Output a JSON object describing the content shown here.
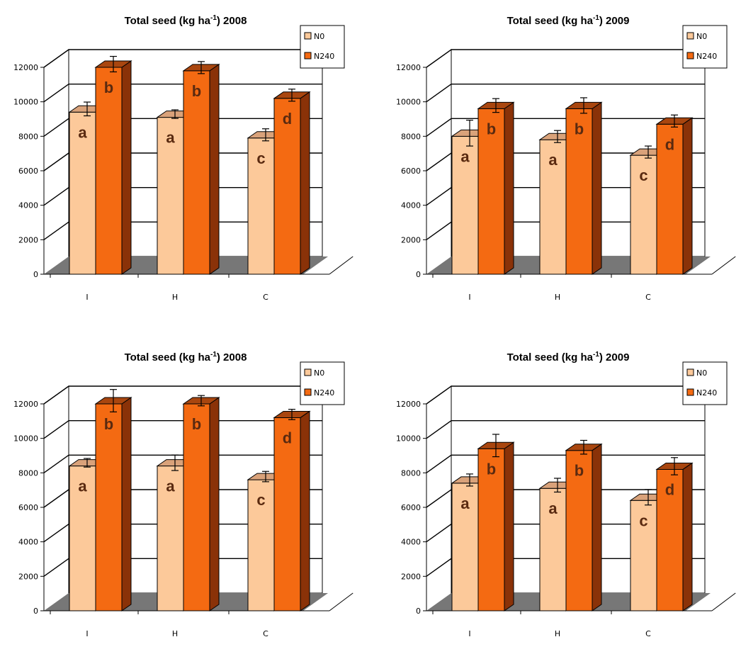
{
  "legend": [
    "N0",
    "N240"
  ],
  "colors": {
    "n0_front": "#fcc99a",
    "n0_top": "#d9a27a",
    "n0_side": "#e8b080",
    "n240_front": "#f46a12",
    "n240_top": "#a9460f",
    "n240_side": "#8a3208",
    "floor": "#777777"
  },
  "chart_data": [
    {
      "type": "bar",
      "title_main": "Total seed (kg ha",
      "title_sup": "-1",
      "title_year": ") 2008",
      "categories": [
        "I",
        "H",
        "C"
      ],
      "ylim": [
        0,
        12000
      ],
      "yticks": [
        "0",
        "2000",
        "4000",
        "6000",
        "8000",
        "10000",
        "12000"
      ],
      "series": [
        {
          "name": "N0",
          "values": [
            9400,
            9100,
            7900
          ],
          "errors": [
            400,
            250,
            350
          ],
          "labels": [
            "a",
            "a",
            "c"
          ]
        },
        {
          "name": "N240",
          "values": [
            12000,
            11800,
            10200
          ],
          "errors": [
            450,
            350,
            350
          ],
          "labels": [
            "b",
            "b",
            "d"
          ]
        }
      ]
    },
    {
      "type": "bar",
      "title_main": "Total seed (kg ha",
      "title_sup": "-1",
      "title_year": ") 2009",
      "categories": [
        "I",
        "H",
        "C"
      ],
      "ylim": [
        0,
        12000
      ],
      "yticks": [
        "0",
        "2000",
        "4000",
        "6000",
        "8000",
        "10000",
        "12000"
      ],
      "series": [
        {
          "name": "N0",
          "values": [
            8000,
            7800,
            6900
          ],
          "errors": [
            750,
            350,
            350
          ],
          "labels": [
            "a",
            "a",
            "c"
          ]
        },
        {
          "name": "N240",
          "values": [
            9600,
            9600,
            8700
          ],
          "errors": [
            400,
            450,
            350
          ],
          "labels": [
            "b",
            "b",
            "d"
          ]
        }
      ]
    },
    {
      "type": "bar",
      "title_main": "Total seed (kg ha",
      "title_sup": "-1",
      "title_year": ") 2008",
      "categories": [
        "I",
        "H",
        "C"
      ],
      "ylim": [
        0,
        12000
      ],
      "yticks": [
        "0",
        "2000",
        "4000",
        "6000",
        "8000",
        "10000",
        "12000"
      ],
      "series": [
        {
          "name": "N0",
          "values": [
            8400,
            8400,
            7600
          ],
          "errors": [
            250,
            450,
            300
          ],
          "labels": [
            "a",
            "a",
            "c"
          ]
        },
        {
          "name": "N240",
          "values": [
            12000,
            12000,
            11200
          ],
          "errors": [
            650,
            300,
            300
          ],
          "labels": [
            "b",
            "b",
            "d"
          ]
        }
      ]
    },
    {
      "type": "bar",
      "title_main": "Total seed (kg ha",
      "title_sup": "-1",
      "title_year": ") 2009",
      "categories": [
        "I",
        "H",
        "C"
      ],
      "ylim": [
        0,
        12000
      ],
      "yticks": [
        "0",
        "2000",
        "4000",
        "6000",
        "8000",
        "10000",
        "12000"
      ],
      "series": [
        {
          "name": "N0",
          "values": [
            7400,
            7100,
            6400
          ],
          "errors": [
            350,
            400,
            450
          ],
          "labels": [
            "a",
            "a",
            "c"
          ]
        },
        {
          "name": "N240",
          "values": [
            9400,
            9300,
            8200
          ],
          "errors": [
            650,
            400,
            500
          ],
          "labels": [
            "b",
            "b",
            "d"
          ]
        }
      ]
    }
  ]
}
